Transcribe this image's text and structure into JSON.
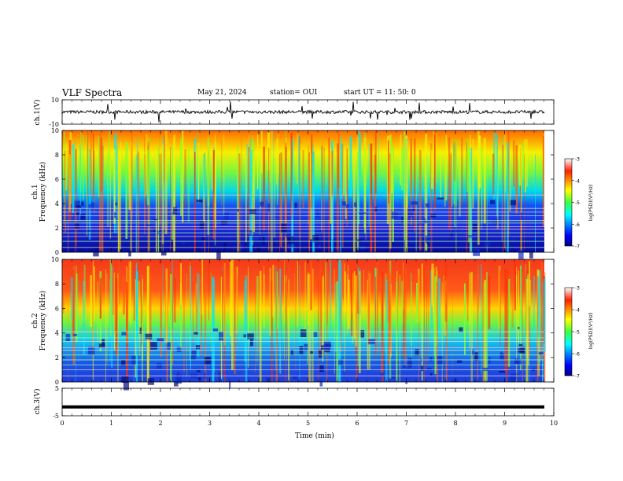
{
  "header": {
    "title": "VLF Spectra",
    "date": "May 21, 2024",
    "station": "station= OUI",
    "start": "start  UT  =   11: 50: 0"
  },
  "chart_data": {
    "type": "heatmap",
    "x": {
      "label": "Time (min)",
      "range": [
        0,
        10
      ],
      "ticks": [
        "0",
        "1",
        "2",
        "3",
        "4",
        "5",
        "6",
        "7",
        "8",
        "9",
        "10"
      ]
    },
    "panels": [
      {
        "name": "ch.1(V)",
        "ylabel": "ch.1(V)",
        "type": "line",
        "ylim": [
          -10,
          10
        ],
        "ticks": [
          "10",
          "-10"
        ]
      },
      {
        "name": "ch.1",
        "ylabel_line1": "ch.1",
        "ylabel_line2": "Frequency (kHz)",
        "type": "heatmap",
        "ylim": [
          0,
          10
        ],
        "ticks": [
          "0",
          "2",
          "4",
          "6",
          "8",
          "10"
        ],
        "colorbar": {
          "label": "log(PSD)(V²/Hz)",
          "range": [
            -7,
            -3
          ],
          "ticks": [
            "-3",
            "-4",
            "-5",
            "-6",
            "-7"
          ]
        },
        "bands_khz": [
          0.4,
          0.9,
          1.3,
          1.6,
          1.9,
          2.1,
          2.4,
          2.6,
          3.0,
          3.3,
          3.6,
          4.7
        ]
      },
      {
        "name": "ch.2",
        "ylabel_line1": "ch.2",
        "ylabel_line2": "Frequency (kHz)",
        "type": "heatmap",
        "ylim": [
          0,
          10
        ],
        "ticks": [
          "0",
          "2",
          "4",
          "6",
          "8",
          "10"
        ],
        "colorbar": {
          "label": "log(PSD)(V²/Hz)",
          "range": [
            -7,
            -3
          ],
          "ticks": [
            "-3",
            "-4",
            "-5",
            "-6",
            "-7"
          ]
        },
        "bands_khz": [
          0.5,
          1.0,
          1.4,
          1.8,
          2.2,
          2.6,
          2.8,
          3.3,
          3.6,
          4.1
        ]
      },
      {
        "name": "ch.3(V)",
        "ylabel": "ch.3(V)",
        "type": "line",
        "ylim": [
          -5,
          5
        ],
        "ticks": [
          "5",
          "-5"
        ],
        "constant_value": -1.8
      }
    ]
  }
}
